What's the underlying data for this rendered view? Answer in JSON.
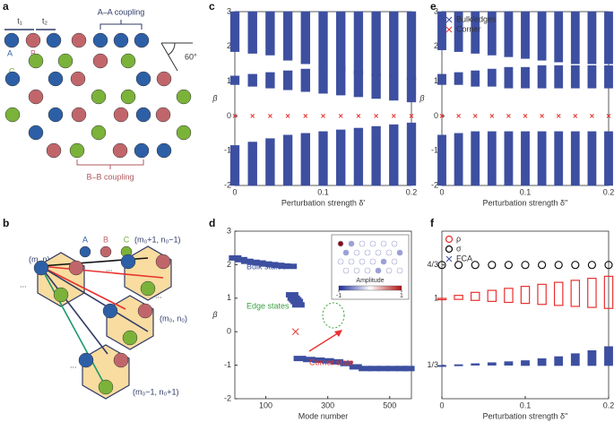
{
  "panel_labels": [
    "a",
    "b",
    "c",
    "d",
    "e",
    "f"
  ],
  "diagram_a": {
    "hopping": [
      "t₁",
      "t₂"
    ],
    "sublattices": [
      "A",
      "B",
      "C"
    ],
    "aa_coupling": "A–A coupling",
    "bb_coupling": "B–B coupling",
    "angle": "60°"
  },
  "diagram_b": {
    "legend": [
      "A",
      "B",
      "C"
    ],
    "cells": [
      "(m, n)",
      "(m₀+1, n₀−1)",
      "(m₀, n₀)",
      "(m₀−1, n₀+1)"
    ],
    "ellipsis": "..."
  },
  "chart_data": [
    {
      "type": "band",
      "x_label": "Perturbation strength δ'",
      "y_label": "β",
      "xlim": [
        0,
        0.2
      ],
      "xticks": [
        0,
        0.1,
        0.2
      ],
      "ylim": [
        -2,
        3
      ],
      "yticks": [
        -2,
        -1,
        0,
        1,
        2,
        3
      ],
      "x": [
        0,
        0.02,
        0.04,
        0.06,
        0.08,
        0.1,
        0.12,
        0.14,
        0.16,
        0.18,
        0.2
      ],
      "series": [
        {
          "color": "#3d4fa0",
          "bands": [
            {
              "low": [
                1.85,
                1.8,
                1.75,
                1.6,
                1.5,
                1.4,
                1.3,
                1.2,
                1.15,
                1.1,
                1.05
              ],
              "high": [
                3,
                3,
                3,
                3,
                3,
                3,
                3,
                3,
                3,
                3,
                3
              ]
            },
            {
              "low": [
                0.9,
                0.85,
                0.8,
                0.75,
                0.7,
                0.65,
                0.6,
                0.55,
                0.5,
                0.45,
                0.4
              ],
              "high": [
                1.15,
                1.2,
                1.25,
                1.3,
                1.35,
                1.4,
                1.4,
                1.3,
                1.2,
                1.15,
                1.1
              ]
            },
            {
              "low": [
                -2,
                -2,
                -2,
                -2,
                -2,
                -2,
                -2,
                -2,
                -2,
                -2,
                -2
              ],
              "high": [
                -0.85,
                -0.75,
                -0.65,
                -0.55,
                -0.5,
                -0.45,
                -0.4,
                -0.35,
                -0.3,
                -0.25,
                -0.2
              ]
            }
          ]
        },
        {
          "color": "#e8312f",
          "values": [
            0,
            0,
            0,
            0,
            0,
            0,
            0,
            0,
            0,
            0,
            0
          ]
        }
      ]
    },
    {
      "type": "scatter",
      "x_label": "Mode number",
      "y_label": "β",
      "xlim": [
        0,
        570
      ],
      "xticks": [
        100,
        300,
        500
      ],
      "ylim": [
        -2,
        3
      ],
      "yticks": [
        -2,
        -1,
        0,
        1,
        2,
        3
      ],
      "series": [
        {
          "color": "#3d4fa0",
          "x": [
            1,
            20,
            40,
            60,
            80,
            100,
            120,
            140,
            160,
            180
          ],
          "values": [
            2.2,
            2.15,
            2.1,
            2.07,
            2.05,
            2.02,
            2.0,
            1.98,
            1.96,
            1.95
          ]
        },
        {
          "color": "#3d4fa0",
          "x": [
            185,
            190,
            195,
            200,
            205
          ],
          "values": [
            1.1,
            1.0,
            0.95,
            0.9,
            0.8
          ]
        },
        {
          "color": "#3d4fa0",
          "x": [
            210,
            240,
            270,
            300,
            330,
            360,
            390,
            420,
            450,
            480,
            510,
            540,
            560
          ],
          "values": [
            -0.8,
            -0.83,
            -0.85,
            -0.87,
            -0.9,
            -0.95,
            -1.05,
            -1.1,
            -1.1,
            -1.1,
            -1.1,
            -1.1,
            -1.1
          ]
        },
        {
          "color": "#e8312f",
          "x": [
            196
          ],
          "values": [
            0
          ]
        }
      ],
      "annotations": [
        {
          "text": "Bulk states",
          "color": "#3d4fa0"
        },
        {
          "text": "Edge states",
          "color": "#3aa040"
        },
        {
          "text": "Corner state",
          "color": "#e8312f"
        }
      ],
      "inset": {
        "title": "Amplitude",
        "colorbar_lim": [
          -1,
          1
        ],
        "colorbar_ticks": [
          -1,
          1
        ]
      }
    },
    {
      "type": "band",
      "x_label": "Perturbation strength δ''",
      "y_label": "β",
      "xlim": [
        0,
        0.2
      ],
      "xticks": [
        0,
        0.1,
        0.2
      ],
      "ylim": [
        -2,
        3
      ],
      "yticks": [
        -2,
        -1,
        0,
        1,
        2,
        3
      ],
      "x": [
        0,
        0.02,
        0.04,
        0.06,
        0.08,
        0.1,
        0.12,
        0.14,
        0.16,
        0.18,
        0.2
      ],
      "series": [
        {
          "name": "Bulk/edges",
          "color": "#3d4fa0",
          "bands": [
            {
              "low": [
                1.9,
                1.85,
                1.8,
                1.75,
                1.7,
                1.65,
                1.6,
                1.55,
                1.5,
                1.5,
                1.5
              ],
              "high": [
                3,
                3,
                3,
                3,
                3,
                3,
                3,
                3,
                3,
                3,
                3
              ]
            },
            {
              "low": [
                0.9,
                0.9,
                0.85,
                0.85,
                0.8,
                0.8,
                0.8,
                0.8,
                0.8,
                0.8,
                0.8
              ],
              "high": [
                1.2,
                1.25,
                1.3,
                1.35,
                1.4,
                1.4,
                1.45,
                1.45,
                1.45,
                1.45,
                1.45
              ]
            },
            {
              "low": [
                -2,
                -2,
                -2,
                -2,
                -2,
                -2,
                -2,
                -2,
                -2,
                -2,
                -2
              ],
              "high": [
                -0.55,
                -0.5,
                -0.45,
                -0.45,
                -0.45,
                -0.45,
                -0.45,
                -0.45,
                -0.45,
                -0.45,
                -0.45
              ]
            }
          ]
        },
        {
          "name": "Corner",
          "color": "#e8312f",
          "values": [
            0,
            0,
            0,
            0,
            0,
            0,
            0,
            0,
            0,
            0,
            0
          ]
        }
      ]
    },
    {
      "type": "band",
      "x_label": "Perturbation strength δ''",
      "xlim": [
        0,
        0.2
      ],
      "xticks": [
        0,
        0.1,
        0.2
      ],
      "ylim": [
        0,
        1.67
      ],
      "yticks": [
        {
          "value": 0.3333,
          "label": "1/3"
        },
        1,
        {
          "value": 1.3333,
          "label": "4/3"
        }
      ],
      "x": [
        0,
        0.02,
        0.04,
        0.06,
        0.08,
        0.1,
        0.12,
        0.14,
        0.16,
        0.18,
        0.2
      ],
      "series": [
        {
          "name": "ρ",
          "color": "#e8312f",
          "marker": "circle",
          "bands": [
            {
              "low": [
                1,
                0.99,
                0.98,
                0.97,
                0.96,
                0.95,
                0.94,
                0.93,
                0.92,
                0.91,
                0.9
              ],
              "high": [
                1,
                1.03,
                1.06,
                1.08,
                1.1,
                1.12,
                1.14,
                1.16,
                1.18,
                1.2,
                1.22
              ]
            }
          ]
        },
        {
          "name": "σ",
          "color": "#111111",
          "marker": "circle",
          "values": [
            1.3333,
            1.3333,
            1.3333,
            1.3333,
            1.3333,
            1.3333,
            1.3333,
            1.3333,
            1.3333,
            1.3333,
            1.3333
          ]
        },
        {
          "name": "FCA",
          "color": "#3d4fa0",
          "marker": "x",
          "bands": [
            {
              "low": [
                0.3333,
                0.3333,
                0.3333,
                0.3333,
                0.3333,
                0.33,
                0.33,
                0.33,
                0.33,
                0.33,
                0.33
              ],
              "high": [
                0.3333,
                0.34,
                0.35,
                0.36,
                0.37,
                0.38,
                0.4,
                0.42,
                0.45,
                0.48,
                0.52
              ]
            }
          ]
        }
      ]
    }
  ]
}
